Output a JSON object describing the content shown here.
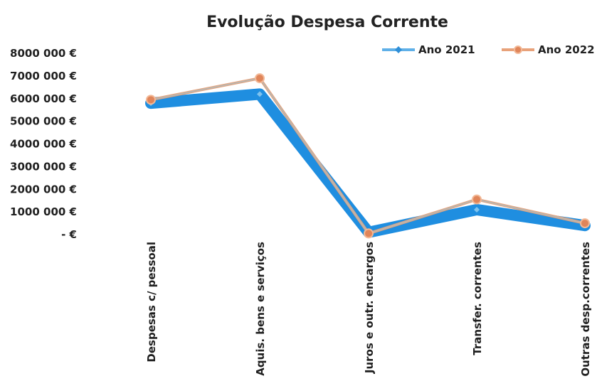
{
  "chart_data": {
    "type": "line",
    "title": "Evolução Despesa Corrente",
    "xlabel": "",
    "ylabel": "",
    "categories": [
      "Despesas c/ pessoal",
      "Aquis. bens e serviços",
      "Juros e outr. encargos",
      "Transfer. correntes",
      "Outras desp.correntes"
    ],
    "series": [
      {
        "name": "Ano 2021",
        "color": "#1f8ee0",
        "marker": "diamond",
        "values": [
          5800000,
          6200000,
          100000,
          1100000,
          400000
        ]
      },
      {
        "name": "Ano 2022",
        "color": "#e8a27a",
        "marker": "circle",
        "values": [
          5950000,
          6900000,
          50000,
          1550000,
          500000
        ]
      }
    ],
    "ylim": [
      0,
      8000000
    ],
    "yticks": [
      {
        "value": 8000000,
        "label": "8000 000 €"
      },
      {
        "value": 7000000,
        "label": "7000 000 €"
      },
      {
        "value": 6000000,
        "label": "6000 000 €"
      },
      {
        "value": 5000000,
        "label": "5000 000 €"
      },
      {
        "value": 4000000,
        "label": "4000 000 €"
      },
      {
        "value": 3000000,
        "label": "3000 000 €"
      },
      {
        "value": 2000000,
        "label": "2000 000 €"
      },
      {
        "value": 1000000,
        "label": "1000 000 €"
      },
      {
        "value": 0,
        "label": "-  €"
      }
    ],
    "grid": false,
    "legend": "top-right"
  }
}
